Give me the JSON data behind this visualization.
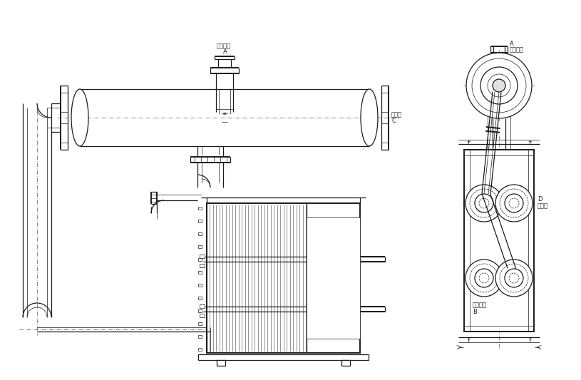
{
  "bg_color": "#ffffff",
  "line_color": "#1a1a1a",
  "dash_color": "#555555",
  "thin_lw": 0.5,
  "med_lw": 0.9,
  "thick_lw": 1.4,
  "labels": {
    "steam_in_top": "蒸汽入口",
    "A_left": "A",
    "water_in": "水进口",
    "C_label": "C",
    "steam_in_right": "蒸汽入口",
    "A_right": "A",
    "water_out": "水出口",
    "D_label": "D",
    "steam_out": "蒸汽出口",
    "B_label": "B"
  },
  "font_size": 6.0
}
